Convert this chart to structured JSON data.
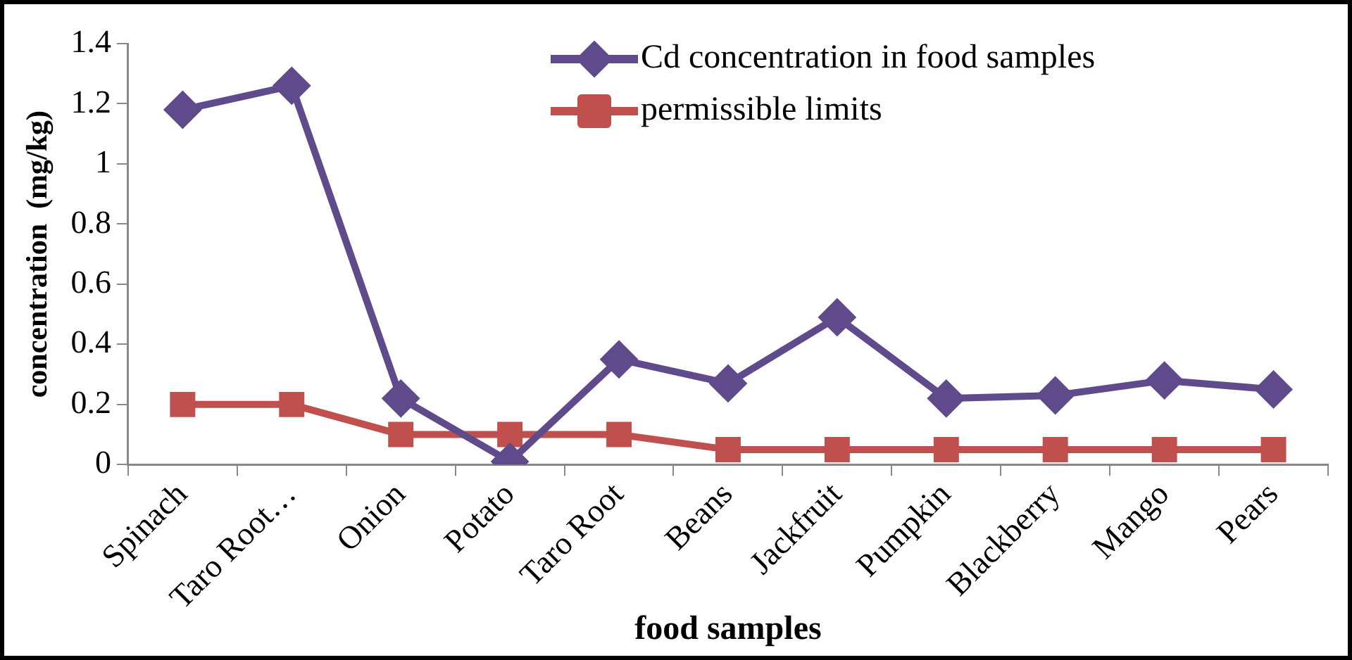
{
  "chart_data": {
    "type": "line",
    "xlabel": "food samples",
    "ylabel": "concentration  (mg/kg)",
    "categories": [
      "Spinach",
      "Taro Root…",
      "Onion",
      "Potato",
      "Taro Root",
      "Beans",
      "Jackfruit",
      "Pumpkin",
      "Blackberry",
      "Mango",
      "Pears"
    ],
    "series": [
      {
        "name": "Cd concentration in food samples",
        "color": "#5f4b8b",
        "marker": "diamond",
        "values": [
          1.18,
          1.26,
          0.22,
          0.01,
          0.35,
          0.27,
          0.49,
          0.22,
          0.23,
          0.28,
          0.25
        ]
      },
      {
        "name": "permissible limits",
        "color": "#c0504d",
        "marker": "square",
        "values": [
          0.2,
          0.2,
          0.1,
          0.1,
          0.1,
          0.05,
          0.05,
          0.05,
          0.05,
          0.05,
          0.05
        ]
      }
    ],
    "ylim": [
      0,
      1.4
    ],
    "yticks": [
      0,
      0.2,
      0.4,
      0.6,
      0.8,
      1,
      1.2,
      1.4
    ],
    "grid": false,
    "legend": "top right",
    "line_style": "solid"
  }
}
